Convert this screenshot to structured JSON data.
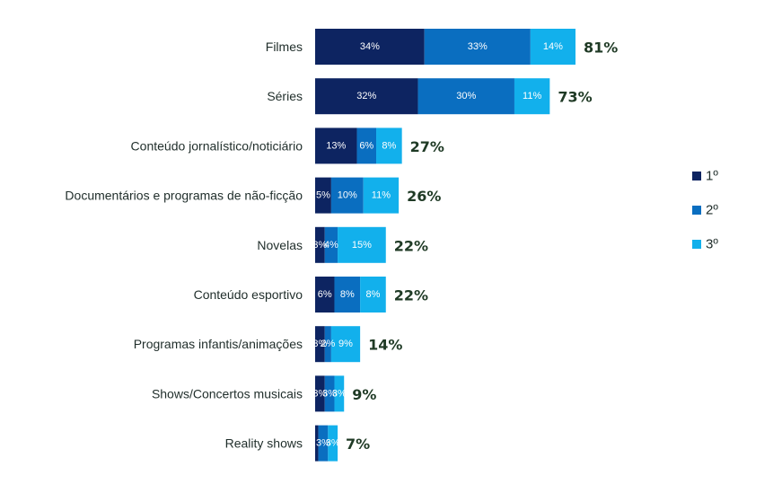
{
  "chart_data": {
    "type": "bar",
    "orientation": "horizontal",
    "stacked": true,
    "categories": [
      "Filmes",
      "Séries",
      "Conteúdo jornalístico/noticiário",
      "Documentários e programas de não-ficção",
      "Novelas",
      "Conteúdo esportivo",
      "Programas infantis/animações",
      "Shows/Concertos musicais",
      "Reality shows"
    ],
    "series": [
      {
        "name": "1º",
        "color": "#0d2461",
        "values": [
          34,
          32,
          13,
          5,
          3,
          6,
          3,
          3,
          1
        ]
      },
      {
        "name": "2º",
        "color": "#0a6ec0",
        "values": [
          33,
          30,
          6,
          10,
          4,
          8,
          2,
          3,
          3
        ]
      },
      {
        "name": "3º",
        "color": "#12b0ec",
        "values": [
          14,
          11,
          8,
          11,
          15,
          8,
          9,
          3,
          3
        ]
      }
    ],
    "segment_labels": [
      [
        "34%",
        "33%",
        "14%"
      ],
      [
        "32%",
        "30%",
        "11%"
      ],
      [
        "13%",
        "6%",
        "8%"
      ],
      [
        "5%",
        "10%",
        "11%"
      ],
      [
        "3%",
        "4%",
        "15%"
      ],
      [
        "6%",
        "8%",
        "8%"
      ],
      [
        "3%",
        "2%",
        "9%"
      ],
      [
        "3%",
        "3%",
        "3%"
      ],
      [
        "",
        "3%",
        "3%"
      ]
    ],
    "totals": [
      81,
      73,
      27,
      26,
      22,
      22,
      14,
      9,
      7
    ],
    "total_labels": [
      "81%",
      "73%",
      "27%",
      "26%",
      "22%",
      "22%",
      "14%",
      "9%",
      "7%"
    ],
    "xlim": [
      0,
      100
    ],
    "legend_position": "right",
    "title": "",
    "xlabel": "",
    "ylabel": ""
  }
}
